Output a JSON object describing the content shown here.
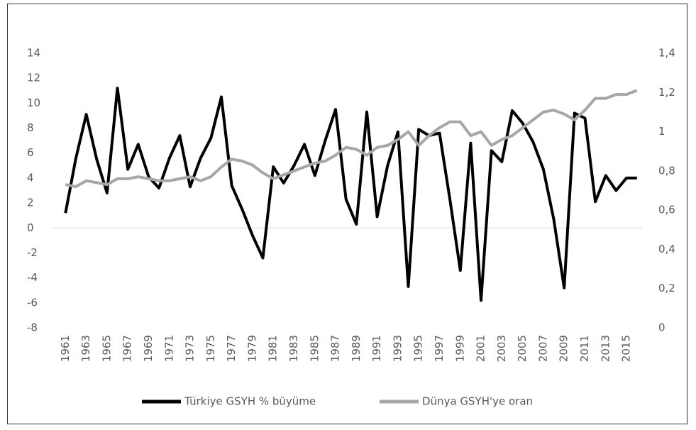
{
  "chart_data": {
    "type": "line",
    "categories": [
      "1961",
      null,
      "1963",
      null,
      "1965",
      null,
      "1967",
      null,
      "1969",
      null,
      "1971",
      null,
      "1973",
      null,
      "1975",
      null,
      "1977",
      null,
      "1979",
      null,
      "1981",
      null,
      "1983",
      null,
      "1985",
      null,
      "1987",
      null,
      "1989",
      null,
      "1991",
      null,
      "1993",
      null,
      "1995",
      null,
      "1997",
      null,
      "1999",
      null,
      "2001",
      null,
      "2003",
      null,
      "2005",
      null,
      "2007",
      null,
      "2009",
      null,
      "2011",
      null,
      "2013",
      null,
      "2015",
      null
    ],
    "series": [
      {
        "name": "Türkiye GSYH % büyüme",
        "color": "#000000",
        "axis": "y",
        "values": [
          1.2,
          5.6,
          9.1,
          5.5,
          2.8,
          11.2,
          4.7,
          6.7,
          4.1,
          3.2,
          5.6,
          7.4,
          3.3,
          5.6,
          7.2,
          10.5,
          3.4,
          1.5,
          -0.6,
          -2.4,
          4.9,
          3.6,
          5.0,
          6.7,
          4.2,
          7.0,
          9.5,
          2.3,
          0.3,
          9.3,
          0.9,
          5.0,
          7.7,
          -4.7,
          7.9,
          7.4,
          7.6,
          2.3,
          -3.4,
          6.8,
          -5.8,
          6.2,
          5.3,
          9.4,
          8.4,
          6.9,
          4.7,
          0.7,
          -4.8,
          9.2,
          8.8,
          2.1,
          4.2,
          3.0,
          4.0,
          4.0
        ]
      },
      {
        "name": "Dünya GSYH'ye oran",
        "color": "#a6a6a6",
        "axis": "y2",
        "values": [
          0.73,
          0.72,
          0.75,
          0.74,
          0.73,
          0.76,
          0.76,
          0.77,
          0.76,
          0.75,
          0.75,
          0.76,
          0.77,
          0.75,
          0.77,
          0.82,
          0.86,
          0.85,
          0.83,
          0.79,
          0.76,
          0.78,
          0.8,
          0.82,
          0.84,
          0.85,
          0.88,
          0.92,
          0.91,
          0.88,
          0.92,
          0.93,
          0.96,
          1.0,
          0.93,
          0.98,
          1.02,
          1.05,
          1.05,
          0.98,
          1.0,
          0.93,
          0.96,
          0.98,
          1.02,
          1.06,
          1.1,
          1.11,
          1.09,
          1.06,
          1.11,
          1.17,
          1.17,
          1.19,
          1.19,
          1.21
        ]
      }
    ],
    "ylim": [
      -8,
      14
    ],
    "yticks": [
      -8,
      -6,
      -4,
      -2,
      0,
      2,
      4,
      6,
      8,
      10,
      12,
      14
    ],
    "y2lim": [
      0,
      1.4
    ],
    "y2ticks": [
      0,
      {
        "value": 0.2,
        "label": "0,2"
      },
      {
        "value": 0.4,
        "label": "0,4"
      },
      {
        "value": 0.6,
        "label": "0,6"
      },
      {
        "value": 0.8,
        "label": "0,8"
      },
      1,
      {
        "value": 1.2,
        "label": "1,2"
      },
      {
        "value": 1.4,
        "label": "1,4"
      }
    ],
    "grid": false,
    "legend": "bottom"
  }
}
